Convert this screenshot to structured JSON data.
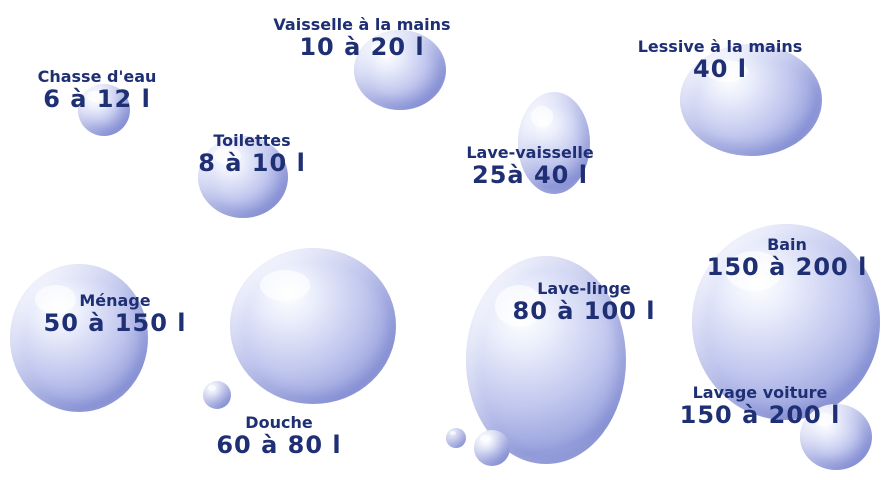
{
  "items": [
    {
      "name": "Chasse d'eau",
      "amount": "6 à 12 l"
    },
    {
      "name": "Vaisselle à la mains",
      "amount": "10 à 20 l"
    },
    {
      "name": "Lessive à la mains",
      "amount": "40 l"
    },
    {
      "name": "Toilettes",
      "amount": "8 à 10 l"
    },
    {
      "name": "Lave-vaisselle",
      "amount": "25à 40 l"
    },
    {
      "name": "Ménage",
      "amount": "50 à 150 l"
    },
    {
      "name": "Lave-linge",
      "amount": "80 à 100 l"
    },
    {
      "name": "Bain",
      "amount": "150 à 200 l"
    },
    {
      "name": "Douche",
      "amount": "60 à 80 l"
    },
    {
      "name": "Lavage voiture",
      "amount": "150 à 200 l"
    }
  ],
  "colors": {
    "text": "#1f2f73",
    "bubble": "#aab1e4",
    "background": "#ffffff"
  }
}
